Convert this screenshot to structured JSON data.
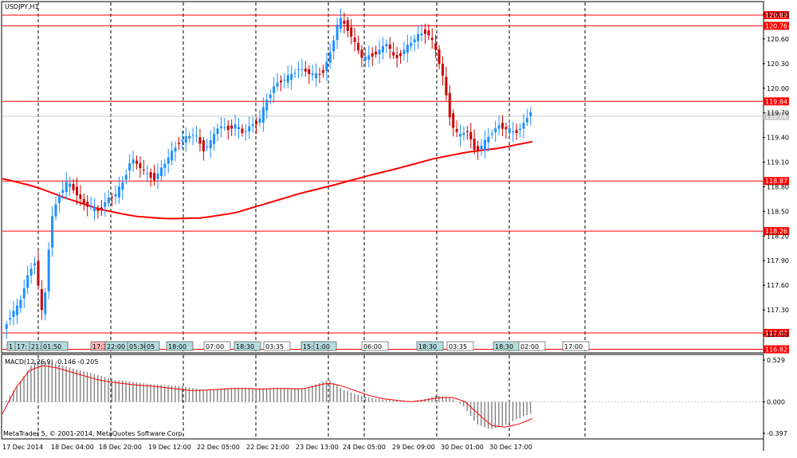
{
  "colors": {
    "background": "#ffffff",
    "frame": "#000000",
    "bull_candle": "#1e90ff",
    "bear_candle": "#cc0000",
    "ma_line": "#ff0000",
    "level_line": "#ff0000",
    "level_label_bg": "#ff0000",
    "price_marker_bg": "#c8c8c8",
    "macd_hist": "#808080",
    "macd_signal": "#ff0000",
    "event_tag_bg": "#b4dcdc",
    "event_tag_alt_bg": "#ffb4b4"
  },
  "chart_data": [
    {
      "type": "candlestick",
      "title": "USDJPY,H1",
      "symbol": "USDJPY",
      "timeframe": "H1",
      "ylim": [
        116.95,
        121.0
      ],
      "y_ticks": [
        "120.90",
        "120.60",
        "120.30",
        "120.00",
        "119.70",
        "119.40",
        "119.10",
        "118.80",
        "118.50",
        "118.20",
        "117.90",
        "117.60",
        "117.30",
        "117.00"
      ],
      "x_tick_labels": [
        "17 Dec 2014",
        "18 Dec 04:00",
        "18 Dec 20:00",
        "19 Dec 12:00",
        "22 Dec 05:00",
        "22 Dec 21:00",
        "23 Dec 13:00",
        "24 Dec 05:00",
        "29 Dec 09:00",
        "30 Dec 01:00",
        "30 Dec 17:00"
      ],
      "current_price": "119.66",
      "series_close_path": [
        117.05,
        117.25,
        117.35,
        117.7,
        117.9,
        117.15,
        118.4,
        118.7,
        118.85,
        118.75,
        118.6,
        118.55,
        118.5,
        118.65,
        118.7,
        118.85,
        119.15,
        119.05,
        118.95,
        118.9,
        119.05,
        119.2,
        119.35,
        119.4,
        119.45,
        119.25,
        119.35,
        119.55,
        119.5,
        119.55,
        119.45,
        119.55,
        119.6,
        119.85,
        120.05,
        120.1,
        120.15,
        120.25,
        120.2,
        120.15,
        120.2,
        120.45,
        120.85,
        120.75,
        120.55,
        120.35,
        120.4,
        120.45,
        120.55,
        120.35,
        120.45,
        120.55,
        120.65,
        120.7,
        120.5,
        120.15,
        119.6,
        119.4,
        119.5,
        119.25,
        119.3,
        119.45,
        119.55,
        119.5,
        119.45,
        119.55,
        119.72
      ],
      "ma_path": [
        118.9,
        118.8,
        118.65,
        118.52,
        118.44,
        118.41,
        118.42,
        118.48,
        118.6,
        118.72,
        118.82,
        118.93,
        119.03,
        119.14,
        119.22,
        119.27,
        119.35
      ],
      "levels": [
        {
          "value": 120.89,
          "label": "120.89"
        },
        {
          "value": 120.76,
          "label": "120.76"
        },
        {
          "value": 119.84,
          "label": "119.84"
        },
        {
          "value": 118.87,
          "label": "118.87"
        },
        {
          "value": 118.26,
          "label": "118.26"
        },
        {
          "value": 117.02,
          "label": "117.02"
        },
        {
          "value": 116.82,
          "label": "116.82"
        }
      ],
      "event_tags": [
        "1",
        "17:",
        "21:",
        "01:50",
        "17:3",
        "22:00",
        "05:30",
        "05",
        "18:00",
        "07:00",
        "18:30",
        "03:35",
        "15:30",
        "1:00",
        "06:00",
        "18:30",
        "03:35",
        "18:30",
        "02:00",
        "17:00"
      ]
    },
    {
      "type": "bar",
      "title": "MACD(12,26,9) -0.146 -0.205",
      "name": "MACD(12,26,9)",
      "macd_value": "-0.146",
      "signal_value": "-0.205",
      "ylim": [
        -0.397,
        0.529
      ],
      "y_ticks": [
        "0.529",
        "0.000",
        "-0.397"
      ],
      "hist_path": [
        0.02,
        0.25,
        0.5,
        0.52,
        0.47,
        0.42,
        0.38,
        0.33,
        0.28,
        0.26,
        0.24,
        0.22,
        0.21,
        0.2,
        0.17,
        0.15,
        0.17,
        0.18,
        0.18,
        0.17,
        0.18,
        0.17,
        0.16,
        0.22,
        0.28,
        0.16,
        0.1,
        0.05,
        0.03,
        0.02,
        0.0,
        0.03,
        0.08,
        0.06,
        -0.05,
        -0.28,
        -0.35,
        -0.3,
        -0.22,
        -0.15
      ],
      "signal_path": [
        -0.15,
        0.18,
        0.4,
        0.46,
        0.43,
        0.38,
        0.33,
        0.28,
        0.25,
        0.23,
        0.21,
        0.2,
        0.18,
        0.16,
        0.14,
        0.15,
        0.16,
        0.17,
        0.17,
        0.16,
        0.17,
        0.17,
        0.16,
        0.2,
        0.24,
        0.2,
        0.14,
        0.08,
        0.04,
        0.02,
        0.0,
        0.02,
        0.05,
        0.06,
        0.01,
        -0.15,
        -0.3,
        -0.32,
        -0.28,
        -0.21
      ]
    }
  ],
  "footer": {
    "copyright": "MetaTrader 5, © 2001-2014, MetaQuotes Software Corp."
  }
}
